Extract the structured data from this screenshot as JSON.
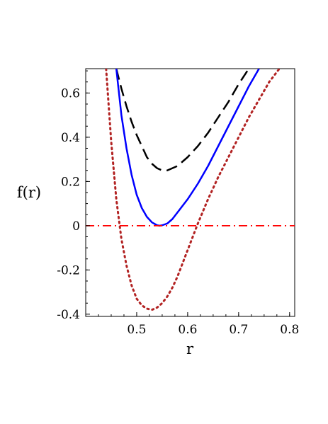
{
  "chart_data": {
    "type": "line",
    "title": "",
    "xlabel": "r",
    "ylabel": "f(r)",
    "xlim": [
      0.4,
      0.81
    ],
    "ylim": [
      -0.41,
      0.71
    ],
    "x_ticks": [
      {
        "value": 0.5,
        "label": "0.5"
      },
      {
        "value": 0.6,
        "label": "0.6"
      },
      {
        "value": 0.7,
        "label": "0.7"
      },
      {
        "value": 0.8,
        "label": "0.8"
      }
    ],
    "y_ticks": [
      {
        "value": -0.4,
        "label": "-0.4"
      },
      {
        "value": -0.2,
        "label": "-0.2"
      },
      {
        "value": 0,
        "label": "0"
      },
      {
        "value": 0.2,
        "label": "0.2"
      },
      {
        "value": 0.4,
        "label": "0.4"
      },
      {
        "value": 0.6,
        "label": "0.6"
      }
    ],
    "grid": false,
    "legend": "none",
    "series": [
      {
        "color": "#000000",
        "style": "dashed",
        "x": [
          0.46,
          0.47,
          0.48,
          0.49,
          0.5,
          0.51,
          0.52,
          0.53,
          0.54,
          0.55,
          0.56,
          0.57,
          0.58,
          0.59,
          0.6,
          0.62,
          0.64,
          0.66,
          0.68,
          0.7,
          0.72
        ],
        "y": [
          0.71,
          0.62,
          0.54,
          0.47,
          0.41,
          0.36,
          0.31,
          0.28,
          0.26,
          0.25,
          0.25,
          0.26,
          0.27,
          0.29,
          0.31,
          0.36,
          0.42,
          0.49,
          0.56,
          0.64,
          0.71
        ]
      },
      {
        "color": "#0000ff",
        "style": "solid",
        "x": [
          0.46,
          0.47,
          0.48,
          0.49,
          0.5,
          0.51,
          0.52,
          0.53,
          0.54,
          0.545,
          0.55,
          0.56,
          0.57,
          0.58,
          0.59,
          0.6,
          0.62,
          0.64,
          0.66,
          0.68,
          0.7,
          0.72,
          0.74
        ],
        "y": [
          0.71,
          0.5,
          0.35,
          0.23,
          0.14,
          0.08,
          0.04,
          0.015,
          0.002,
          0.0,
          0.002,
          0.01,
          0.03,
          0.06,
          0.09,
          0.12,
          0.19,
          0.27,
          0.36,
          0.45,
          0.54,
          0.63,
          0.71
        ]
      },
      {
        "color": "#b22222",
        "style": "dotted",
        "x": [
          0.44,
          0.45,
          0.46,
          0.47,
          0.48,
          0.49,
          0.5,
          0.51,
          0.52,
          0.53,
          0.54,
          0.55,
          0.56,
          0.57,
          0.58,
          0.59,
          0.6,
          0.62,
          0.64,
          0.66,
          0.68,
          0.7,
          0.72,
          0.74,
          0.76,
          0.78
        ],
        "y": [
          0.71,
          0.38,
          0.12,
          -0.06,
          -0.18,
          -0.27,
          -0.33,
          -0.36,
          -0.375,
          -0.38,
          -0.37,
          -0.35,
          -0.32,
          -0.28,
          -0.23,
          -0.17,
          -0.11,
          0.01,
          0.12,
          0.22,
          0.31,
          0.4,
          0.49,
          0.57,
          0.65,
          0.71
        ]
      },
      {
        "color": "#ff0000",
        "style": "dashdot",
        "x": [
          0.4,
          0.81
        ],
        "y": [
          0,
          0
        ]
      }
    ]
  }
}
